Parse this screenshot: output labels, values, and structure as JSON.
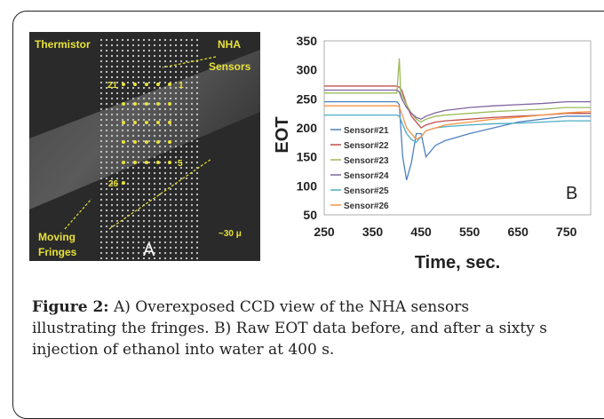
{
  "panel_a": {
    "labels": {
      "thermistor": "Thermistor",
      "nha": "NHA",
      "sensors": "Sensors",
      "moving": "Moving",
      "fringes": "Fringes",
      "scale": "~30 μ",
      "panel": "A",
      "s21": "21",
      "s1": "1",
      "s5": "5",
      "s26": "26"
    }
  },
  "panel_b": {
    "panel_letter": "B",
    "chart_data": {
      "type": "line",
      "xlabel": "Time, sec.",
      "ylabel": "EOT",
      "xlim": [
        250,
        800
      ],
      "ylim": [
        50,
        350
      ],
      "xticks": [
        250,
        350,
        450,
        550,
        650,
        750
      ],
      "yticks": [
        50,
        100,
        150,
        200,
        250,
        300,
        350
      ],
      "legend_position": "left",
      "series": [
        {
          "name": "Sensor#21",
          "color": "#4f81bd",
          "x": [
            250,
            400,
            405,
            412,
            420,
            430,
            440,
            450,
            460,
            480,
            500,
            550,
            600,
            650,
            700,
            750,
            800
          ],
          "y": [
            245,
            245,
            240,
            150,
            110,
            140,
            190,
            190,
            150,
            170,
            178,
            190,
            200,
            210,
            215,
            220,
            220
          ]
        },
        {
          "name": "Sensor#22",
          "color": "#c0504d",
          "x": [
            250,
            400,
            405,
            410,
            420,
            430,
            440,
            450,
            460,
            480,
            500,
            550,
            600,
            650,
            700,
            750,
            800
          ],
          "y": [
            272,
            272,
            270,
            265,
            240,
            220,
            210,
            200,
            205,
            210,
            212,
            215,
            218,
            220,
            222,
            225,
            225
          ]
        },
        {
          "name": "Sensor#23",
          "color": "#9bbb59",
          "x": [
            250,
            400,
            405,
            408,
            420,
            430,
            440,
            450,
            460,
            480,
            500,
            550,
            600,
            650,
            700,
            750,
            800
          ],
          "y": [
            260,
            260,
            320,
            260,
            240,
            225,
            215,
            210,
            215,
            220,
            222,
            225,
            228,
            230,
            232,
            235,
            235
          ]
        },
        {
          "name": "Sensor#24",
          "color": "#8064a2",
          "x": [
            250,
            400,
            405,
            410,
            420,
            430,
            440,
            450,
            460,
            480,
            500,
            550,
            600,
            650,
            700,
            750,
            800
          ],
          "y": [
            265,
            265,
            262,
            250,
            235,
            225,
            218,
            215,
            220,
            226,
            230,
            235,
            238,
            240,
            242,
            245,
            245
          ]
        },
        {
          "name": "Sensor#25",
          "color": "#4bacc6",
          "x": [
            250,
            400,
            405,
            410,
            420,
            430,
            440,
            450,
            460,
            480,
            500,
            550,
            600,
            650,
            700,
            750,
            800
          ],
          "y": [
            222,
            222,
            220,
            210,
            190,
            180,
            175,
            185,
            195,
            200,
            202,
            205,
            207,
            208,
            210,
            212,
            212
          ]
        },
        {
          "name": "Sensor#26",
          "color": "#f79646",
          "x": [
            250,
            400,
            405,
            410,
            420,
            430,
            440,
            450,
            460,
            480,
            500,
            550,
            600,
            650,
            700,
            750,
            800
          ],
          "y": [
            238,
            238,
            236,
            225,
            200,
            190,
            180,
            185,
            195,
            200,
            205,
            210,
            215,
            218,
            222,
            226,
            228
          ]
        }
      ]
    }
  },
  "caption": {
    "label": "Figure 2:",
    "line1": " A) Overexposed CCD view of the NHA sensors",
    "line2": "illustrating the fringes. B) Raw EOT data before, and after a sixty s",
    "line3": "injection of ethanol into water at 400 s."
  }
}
